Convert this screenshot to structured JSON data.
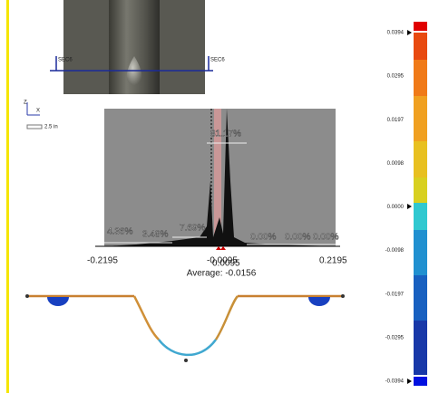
{
  "section_view": {
    "left_label": "SEC6",
    "right_label": "SEC6"
  },
  "triad": {
    "z": "Z",
    "x": "X",
    "scale": "2.5 in"
  },
  "histogram": {
    "bin_labels": [
      "4.36%",
      "3.48%",
      "7.69%",
      "81.17%",
      "0.00%",
      "0.00%",
      "0.00%"
    ],
    "axis_labels": [
      "-0.2195",
      "-0.0095",
      "0.0095",
      "0.2195"
    ],
    "average": "Average: -0.0156"
  },
  "color_scale": {
    "labels": [
      "0.0394",
      "0.0295",
      "0.0197",
      "0.0098",
      "0.0000",
      "-0.0098",
      "-0.0197",
      "-0.0295",
      "-0.0394"
    ]
  }
}
